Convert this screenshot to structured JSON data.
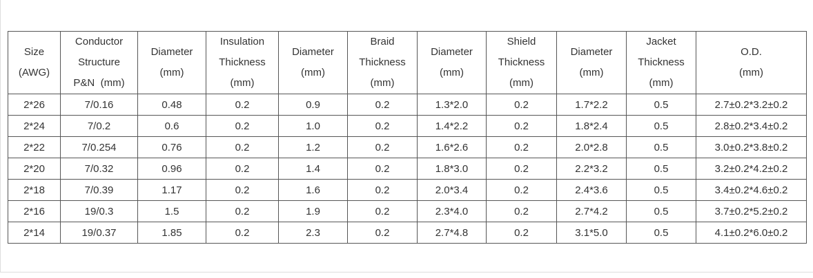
{
  "table": {
    "header": [
      [
        "Size",
        "(AWG)"
      ],
      [
        "Conductor",
        "Structure",
        "P&N  (mm)"
      ],
      [
        "Diameter",
        "(mm)"
      ],
      [
        "Insulation",
        "Thickness",
        "(mm)"
      ],
      [
        "Diameter",
        "(mm)"
      ],
      [
        "Braid",
        "Thickness",
        "(mm)"
      ],
      [
        "Diameter",
        "(mm)"
      ],
      [
        "Shield",
        "Thickness",
        "(mm)"
      ],
      [
        "Diameter",
        "(mm)"
      ],
      [
        "Jacket",
        "Thickness",
        "(mm)"
      ],
      [
        "O.D.",
        "(mm)"
      ]
    ],
    "rows": [
      [
        "2*26",
        "7/0.16",
        "0.48",
        "0.2",
        "0.9",
        "0.2",
        "1.3*2.0",
        "0.2",
        "1.7*2.2",
        "0.5",
        "2.7±0.2*3.2±0.2"
      ],
      [
        "2*24",
        "7/0.2",
        "0.6",
        "0.2",
        "1.0",
        "0.2",
        "1.4*2.2",
        "0.2",
        "1.8*2.4",
        "0.5",
        "2.8±0.2*3.4±0.2"
      ],
      [
        "2*22",
        "7/0.254",
        "0.76",
        "0.2",
        "1.2",
        "0.2",
        "1.6*2.6",
        "0.2",
        "2.0*2.8",
        "0.5",
        "3.0±0.2*3.8±0.2"
      ],
      [
        "2*20",
        "7/0.32",
        "0.96",
        "0.2",
        "1.4",
        "0.2",
        "1.8*3.0",
        "0.2",
        "2.2*3.2",
        "0.5",
        "3.2±0.2*4.2±0.2"
      ],
      [
        "2*18",
        "7/0.39",
        "1.17",
        "0.2",
        "1.6",
        "0.2",
        "2.0*3.4",
        "0.2",
        "2.4*3.6",
        "0.5",
        "3.4±0.2*4.6±0.2"
      ],
      [
        "2*16",
        "19/0.3",
        "1.5",
        "0.2",
        "1.9",
        "0.2",
        "2.3*4.0",
        "0.2",
        "2.7*4.2",
        "0.5",
        "3.7±0.2*5.2±0.2"
      ],
      [
        "2*14",
        "19/0.37",
        "1.85",
        "0.2",
        "2.3",
        "0.2",
        "2.7*4.8",
        "0.2",
        "3.1*5.0",
        "0.5",
        "4.1±0.2*6.0±0.2"
      ]
    ]
  }
}
